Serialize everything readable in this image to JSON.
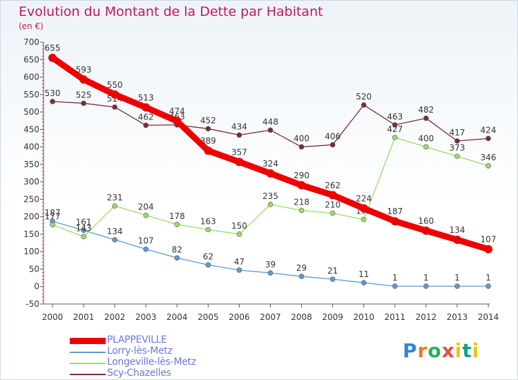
{
  "title": "Evolution du Montant de la Dette par Habitant",
  "subtitle": "(en €)",
  "logo": "Proxiti",
  "chart_data": {
    "type": "line",
    "x": [
      "2000",
      "2001",
      "2002",
      "2003",
      "2004",
      "2005",
      "2006",
      "2007",
      "2008",
      "2009",
      "2010",
      "2011",
      "2012",
      "2013",
      "2014"
    ],
    "ylim": [
      -50,
      700
    ],
    "yticks": [
      -50,
      0,
      50,
      100,
      150,
      200,
      250,
      300,
      350,
      400,
      450,
      500,
      550,
      600,
      650,
      700
    ],
    "grid": false,
    "legend_position": "bottom-left",
    "series": [
      {
        "name": "PLAPPEVILLE",
        "color": "#ee0000",
        "values": [
          655,
          593,
          550,
          513,
          474,
          389,
          357,
          324,
          290,
          262,
          224,
          187,
          160,
          134,
          107
        ]
      },
      {
        "name": "Lorry-lès-Metz",
        "color": "#5b9bd5",
        "values": [
          187,
          161,
          134,
          107,
          82,
          62,
          47,
          39,
          29,
          21,
          11,
          1,
          1,
          1,
          1
        ]
      },
      {
        "name": "Longeville-lès-Metz",
        "color": "#99dd66",
        "values": [
          177,
          143,
          231,
          204,
          178,
          163,
          150,
          235,
          218,
          210,
          192,
          427,
          400,
          373,
          346
        ]
      },
      {
        "name": "Scy-Chazelles",
        "color": "#7b2a3a",
        "values": [
          530,
          525,
          514,
          462,
          463,
          452,
          434,
          448,
          400,
          406,
          520,
          463,
          482,
          417,
          424
        ]
      }
    ]
  }
}
